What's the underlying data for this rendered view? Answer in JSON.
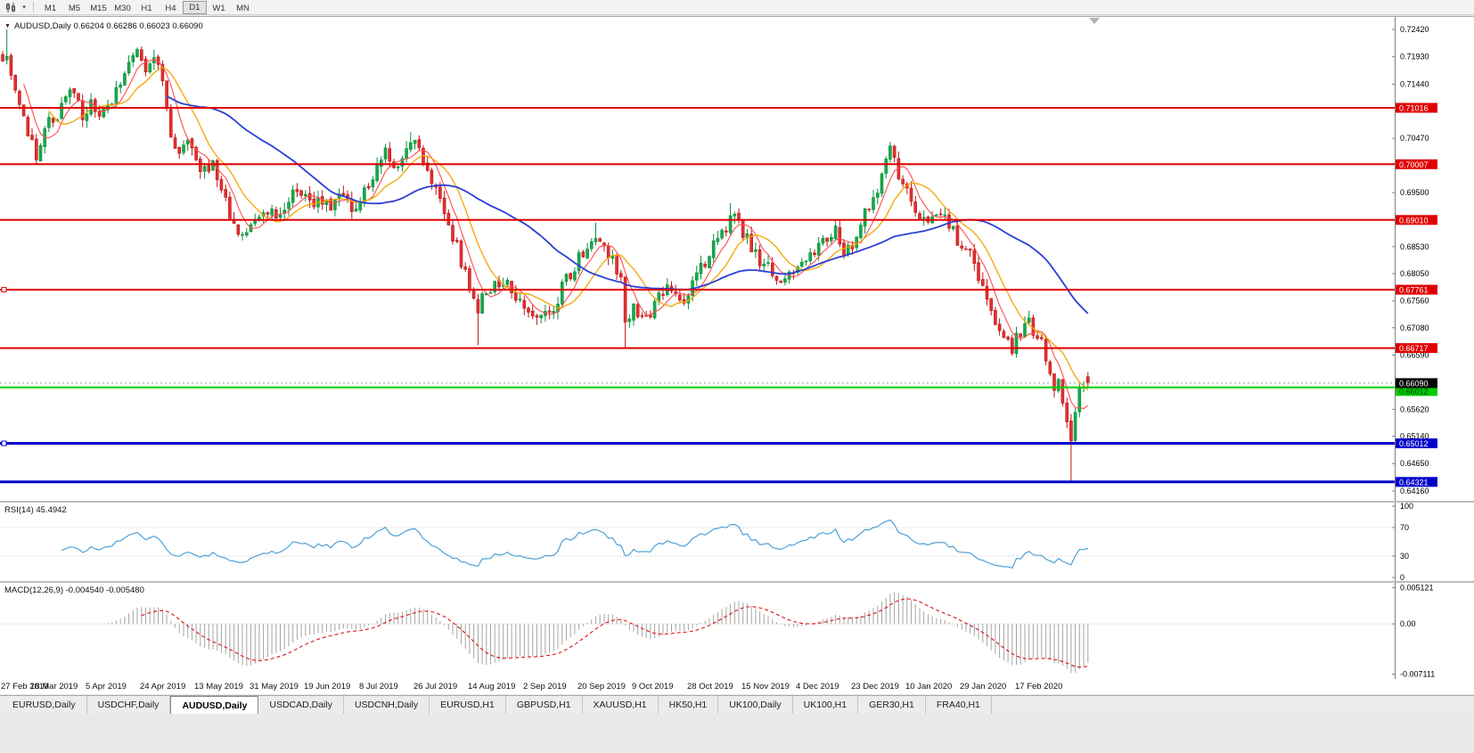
{
  "toolbar": {
    "timeframes": [
      "M1",
      "M5",
      "M15",
      "M30",
      "H1",
      "H4",
      "D1",
      "W1",
      "MN"
    ],
    "active_timeframe": "D1"
  },
  "chart": {
    "symbol_ohlc": "AUDUSD,Daily 0.66204 0.66286 0.66023 0.66090",
    "current_price": 0.6609,
    "current_price_label": "0.66090"
  },
  "price_axis": {
    "ticks": [
      "0.72420",
      "0.71930",
      "0.71440",
      "0.70470",
      "0.69500",
      "0.68530",
      "0.68050",
      "0.67560",
      "0.67080",
      "0.66590",
      "0.65620",
      "0.65140",
      "0.64650",
      "0.64160"
    ]
  },
  "levels": [
    {
      "price": 0.71016,
      "label": "0.71016",
      "color": "#e00000",
      "line_width": 2,
      "text_color": "#ffffff"
    },
    {
      "price": 0.70007,
      "label": "0.70007",
      "color": "#e00000",
      "line_width": 2,
      "text_color": "#ffffff"
    },
    {
      "price": 0.6901,
      "label": "0.69010",
      "color": "#e00000",
      "line_width": 2,
      "text_color": "#ffffff"
    },
    {
      "price": 0.67761,
      "label": "0.67761",
      "color": "#e00000",
      "line_width": 2,
      "text_color": "#ffffff",
      "left_marker": true
    },
    {
      "price": 0.66717,
      "label": "0.66717",
      "color": "#e00000",
      "line_width": 2,
      "text_color": "#ffffff"
    },
    {
      "price": 0.66012,
      "label": "0.66012",
      "color": "#00cc00",
      "line_width": 2,
      "text_color": "#00390a",
      "tag_nudge": 4
    },
    {
      "price": 0.65012,
      "label": "0.65012",
      "color": "#0000cc",
      "line_width": 3,
      "text_color": "#ffffff",
      "left_marker": true
    },
    {
      "price": 0.64321,
      "label": "0.64321",
      "color": "#0000cc",
      "line_width": 3,
      "text_color": "#ffffff"
    }
  ],
  "moving_averages": [
    {
      "name": "ma-fast-red",
      "period": 6,
      "color": "#ff4d4d",
      "width": 1.1
    },
    {
      "name": "ma-mid-orange",
      "period": 12,
      "color": "#f5a500",
      "width": 1.3
    },
    {
      "name": "ma-slow-blue",
      "period": 40,
      "color": "#2b3fd4",
      "width": 1.8
    }
  ],
  "rsi": {
    "label": "RSI(14) 45.4942",
    "period": 14,
    "value": "45.4942",
    "color": "#4da0d8",
    "levels": [
      70,
      30
    ],
    "axis_ticks": [
      "100",
      "70",
      "30",
      "0"
    ]
  },
  "macd": {
    "label": "MACD(12,26,9) -0.004540 -0.005480",
    "fast": 12,
    "slow": 26,
    "signal": 9,
    "values": [
      "-0.004540",
      "-0.005480"
    ],
    "axis_ticks": [
      "0.005121",
      "0.00",
      "-0.007111"
    ],
    "histogram_color": "#a4a4a4",
    "signal_color": "#e01010"
  },
  "time_axis": {
    "bars_per_label": 13,
    "labels": [
      "27 Feb 2019",
      "18 Mar 2019",
      "5 Apr 2019",
      "24 Apr 2019",
      "13 May 2019",
      "31 May 2019",
      "19 Jun 2019",
      "8 Jul 2019",
      "26 Jul 2019",
      "14 Aug 2019",
      "2 Sep 2019",
      "20 Sep 2019",
      "9 Oct 2019",
      "28 Oct 2019",
      "15 Nov 2019",
      "4 Dec 2019",
      "23 Dec 2019",
      "10 Jan 2020",
      "29 Jan 2020",
      "17 Feb 2020"
    ]
  },
  "tabs": {
    "items": [
      "EURUSD,Daily",
      "USDCHF,Daily",
      "AUDUSD,Daily",
      "USDCAD,Daily",
      "USDCNH,Daily",
      "EURUSD,H1",
      "GBPUSD,H1",
      "XAUUSD,H1",
      "HK50,H1",
      "UK100,Daily",
      "UK100,H1",
      "GER30,H1",
      "FRA40,H1"
    ],
    "active": "AUDUSD,Daily"
  },
  "chart_data": {
    "type": "candlestick",
    "symbol": "AUDUSD",
    "timeframe": "Daily",
    "bar_count": 259,
    "price_axis_range": [
      0.6398,
      0.7264
    ],
    "close_anchors": [
      [
        0,
        0.7185
      ],
      [
        1,
        0.7205
      ],
      [
        2,
        0.715
      ],
      [
        4,
        0.711
      ],
      [
        6,
        0.7055
      ],
      [
        8,
        0.702
      ],
      [
        10,
        0.7065
      ],
      [
        13,
        0.709
      ],
      [
        15,
        0.712
      ],
      [
        17,
        0.7135
      ],
      [
        19,
        0.7085
      ],
      [
        21,
        0.7105
      ],
      [
        23,
        0.708
      ],
      [
        26,
        0.7115
      ],
      [
        28,
        0.715
      ],
      [
        30,
        0.718
      ],
      [
        32,
        0.7195
      ],
      [
        34,
        0.7165
      ],
      [
        36,
        0.719
      ],
      [
        38,
        0.715
      ],
      [
        40,
        0.706
      ],
      [
        42,
        0.7015
      ],
      [
        44,
        0.7035
      ],
      [
        46,
        0.7
      ],
      [
        48,
        0.699
      ],
      [
        50,
        0.7
      ],
      [
        52,
        0.6945
      ],
      [
        54,
        0.6915
      ],
      [
        56,
        0.688
      ],
      [
        58,
        0.687
      ],
      [
        60,
        0.6895
      ],
      [
        62,
        0.6915
      ],
      [
        65,
        0.6905
      ],
      [
        68,
        0.6935
      ],
      [
        70,
        0.696
      ],
      [
        72,
        0.6945
      ],
      [
        74,
        0.693
      ],
      [
        76,
        0.694
      ],
      [
        78,
        0.6925
      ],
      [
        80,
        0.6945
      ],
      [
        82,
        0.693
      ],
      [
        84,
        0.692
      ],
      [
        86,
        0.695
      ],
      [
        88,
        0.6985
      ],
      [
        90,
        0.701
      ],
      [
        91,
        0.702
      ],
      [
        93,
        0.6985
      ],
      [
        95,
        0.701
      ],
      [
        97,
        0.7045
      ],
      [
        99,
        0.7035
      ],
      [
        101,
        0.699
      ],
      [
        103,
        0.696
      ],
      [
        104,
        0.694
      ],
      [
        106,
        0.6895
      ],
      [
        108,
        0.685
      ],
      [
        110,
        0.68
      ],
      [
        112,
        0.677
      ],
      [
        113,
        0.6745
      ],
      [
        114,
        0.676
      ],
      [
        116,
        0.6775
      ],
      [
        117,
        0.678
      ],
      [
        119,
        0.679
      ],
      [
        121,
        0.6775
      ],
      [
        123,
        0.6765
      ],
      [
        125,
        0.674
      ],
      [
        127,
        0.672
      ],
      [
        129,
        0.673
      ],
      [
        131,
        0.6745
      ],
      [
        133,
        0.678
      ],
      [
        135,
        0.6805
      ],
      [
        137,
        0.683
      ],
      [
        139,
        0.686
      ],
      [
        141,
        0.688
      ],
      [
        143,
        0.6855
      ],
      [
        145,
        0.683
      ],
      [
        147,
        0.679
      ],
      [
        148,
        0.672
      ],
      [
        150,
        0.6745
      ],
      [
        152,
        0.6735
      ],
      [
        154,
        0.673
      ],
      [
        156,
        0.676
      ],
      [
        158,
        0.678
      ],
      [
        160,
        0.677
      ],
      [
        162,
        0.676
      ],
      [
        164,
        0.679
      ],
      [
        166,
        0.6815
      ],
      [
        168,
        0.684
      ],
      [
        170,
        0.6865
      ],
      [
        172,
        0.689
      ],
      [
        174,
        0.6905
      ],
      [
        176,
        0.6875
      ],
      [
        178,
        0.6855
      ],
      [
        180,
        0.683
      ],
      [
        182,
        0.6815
      ],
      [
        184,
        0.6785
      ],
      [
        186,
        0.6795
      ],
      [
        188,
        0.681
      ],
      [
        190,
        0.6825
      ],
      [
        192,
        0.684
      ],
      [
        194,
        0.685
      ],
      [
        196,
        0.6865
      ],
      [
        198,
        0.688
      ],
      [
        200,
        0.6845
      ],
      [
        202,
        0.686
      ],
      [
        204,
        0.689
      ],
      [
        206,
        0.693
      ],
      [
        208,
        0.696
      ],
      [
        210,
        0.7005
      ],
      [
        211,
        0.703
      ],
      [
        213,
        0.6985
      ],
      [
        215,
        0.6945
      ],
      [
        217,
        0.692
      ],
      [
        219,
        0.6895
      ],
      [
        221,
        0.69
      ],
      [
        223,
        0.691
      ],
      [
        225,
        0.689
      ],
      [
        227,
        0.6865
      ],
      [
        229,
        0.685
      ],
      [
        231,
        0.682
      ],
      [
        233,
        0.678
      ],
      [
        234,
        0.6755
      ],
      [
        236,
        0.672
      ],
      [
        238,
        0.669
      ],
      [
        240,
        0.6675
      ],
      [
        242,
        0.67
      ],
      [
        244,
        0.6715
      ],
      [
        246,
        0.67
      ],
      [
        247,
        0.669
      ],
      [
        248,
        0.666
      ],
      [
        249,
        0.662
      ],
      [
        250,
        0.659
      ],
      [
        251,
        0.6605
      ],
      [
        252,
        0.656
      ],
      [
        253,
        0.654
      ],
      [
        254,
        0.6515
      ],
      [
        255,
        0.655
      ],
      [
        256,
        0.659
      ],
      [
        257,
        0.6605
      ],
      [
        258,
        0.6609
      ]
    ],
    "wick_overrides": [
      {
        "i": 1,
        "high": 0.7242
      },
      {
        "i": 8,
        "low": 0.7002
      },
      {
        "i": 97,
        "high": 0.7058
      },
      {
        "i": 113,
        "low": 0.6677
      },
      {
        "i": 141,
        "high": 0.6896
      },
      {
        "i": 148,
        "low": 0.6671
      },
      {
        "i": 173,
        "high": 0.6931
      },
      {
        "i": 211,
        "high": 0.7041
      },
      {
        "i": 254,
        "low": 0.6434
      },
      {
        "i": 258,
        "open": 0.66204,
        "high": 0.66286,
        "low": 0.66023,
        "close": 0.6609
      }
    ]
  }
}
